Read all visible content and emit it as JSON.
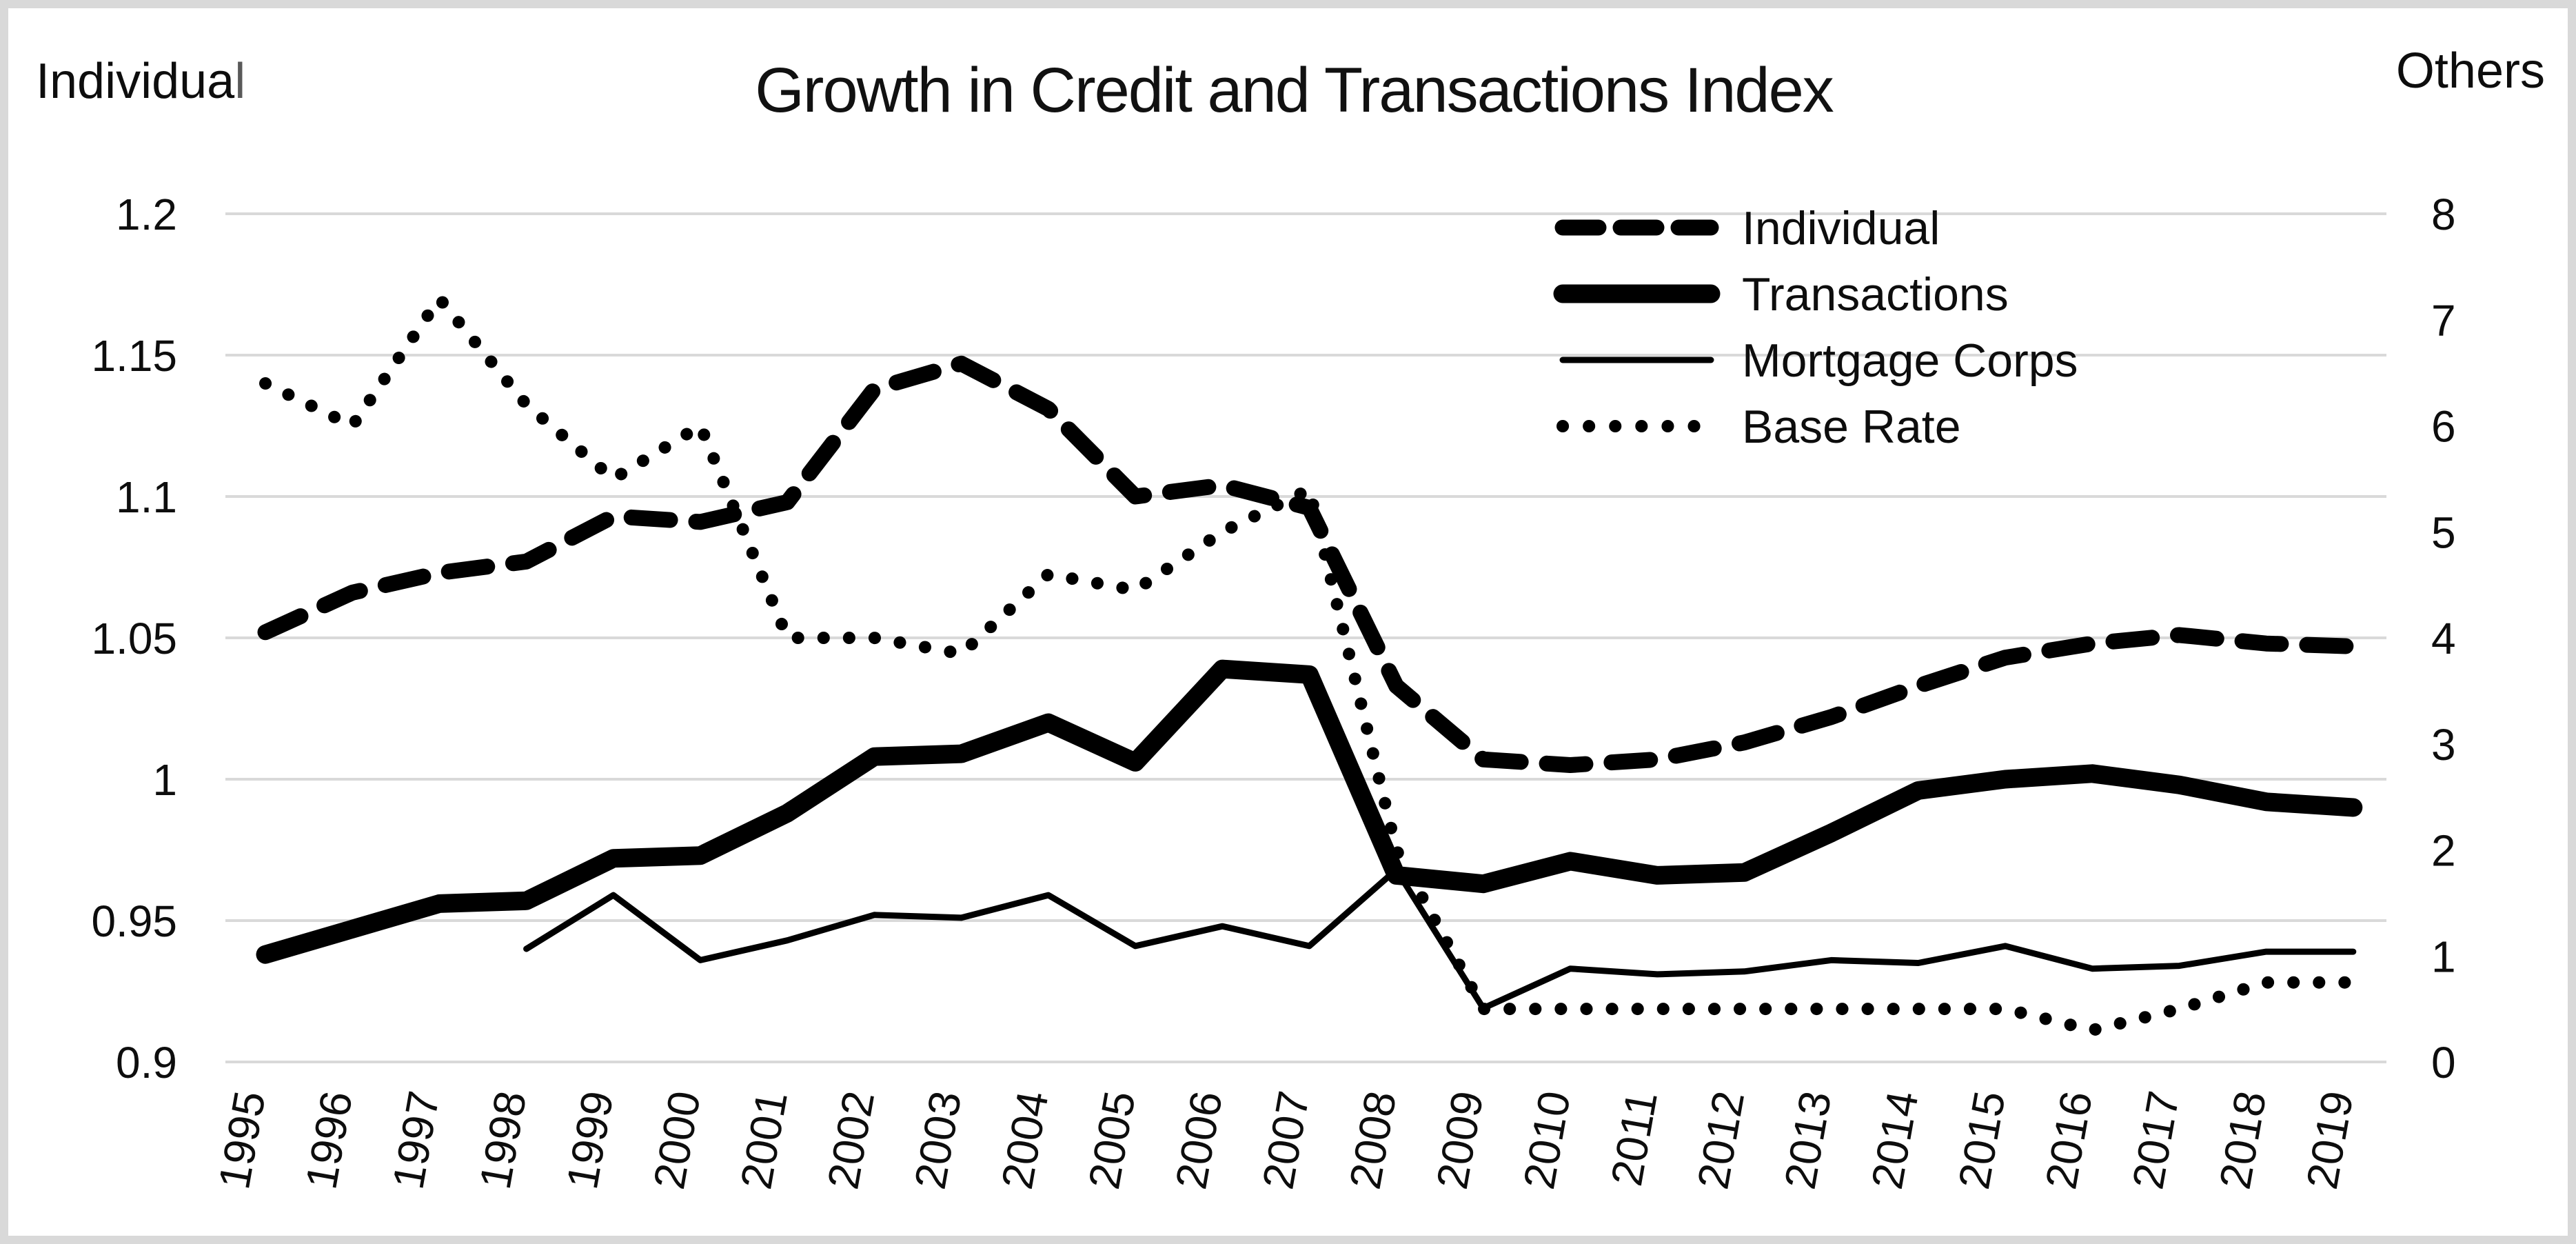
{
  "figure": {
    "left_axis_title_main": "Individua",
    "left_axis_title_tail": "l",
    "right_axis_title": "Others",
    "border_color": "#d9d9d9",
    "line_color": "#000000",
    "grid_color": "#d9d9d9"
  },
  "chart_data": {
    "type": "line",
    "title": "Growth in Credit and Transactions Index",
    "xlabel": "",
    "ylabel_left": "Individual",
    "ylabel_right": "Others",
    "grid": true,
    "legend_position": "upper-right",
    "categories": [
      "1995",
      "1996",
      "1997",
      "1998",
      "1999",
      "2000",
      "2001",
      "2002",
      "2003",
      "2004",
      "2005",
      "2006",
      "2007",
      "2008",
      "2009",
      "2010",
      "2011",
      "2012",
      "2013",
      "2014",
      "2015",
      "2016",
      "2017",
      "2018",
      "2019"
    ],
    "left_axis": {
      "min": 0.9,
      "max": 1.2,
      "ticks": [
        "1.2",
        "1.15",
        "1.1",
        "1.05",
        "1",
        "0.95",
        "0.9"
      ],
      "tick_values": [
        1.2,
        1.15,
        1.1,
        1.05,
        1.0,
        0.95,
        0.9
      ]
    },
    "right_axis": {
      "min": 0,
      "max": 8,
      "ticks": [
        "8",
        "7",
        "6",
        "5",
        "4",
        "3",
        "2",
        "1",
        "0"
      ],
      "tick_values": [
        8,
        7,
        6,
        5,
        4,
        3,
        2,
        1,
        0
      ]
    },
    "series": [
      {
        "name": "Individual",
        "axis": "left",
        "style": "dashed",
        "values": [
          1.052,
          1.066,
          1.073,
          1.077,
          1.093,
          1.091,
          1.098,
          1.138,
          1.147,
          1.131,
          1.1,
          1.104,
          1.096,
          1.033,
          1.007,
          1.005,
          1.007,
          1.013,
          1.022,
          1.033,
          1.043,
          1.048,
          1.051,
          1.048,
          1.047
        ]
      },
      {
        "name": "Transactions",
        "axis": "left",
        "style": "thick",
        "values": [
          0.938,
          0.947,
          0.956,
          0.957,
          0.972,
          0.973,
          0.988,
          1.008,
          1.009,
          1.02,
          1.006,
          1.039,
          1.037,
          0.966,
          0.963,
          0.971,
          0.966,
          0.967,
          0.981,
          0.996,
          1.0,
          1.002,
          0.998,
          0.992,
          0.99
        ]
      },
      {
        "name": "Mortgage Corps",
        "axis": "left",
        "style": "thin",
        "values": [
          null,
          null,
          null,
          0.94,
          0.959,
          0.936,
          0.943,
          0.952,
          0.951,
          0.959,
          0.941,
          0.948,
          0.941,
          0.968,
          0.919,
          0.933,
          0.931,
          0.932,
          0.936,
          0.935,
          0.941,
          0.933,
          0.934,
          0.939,
          0.939
        ]
      },
      {
        "name": "Base Rate",
        "axis": "right",
        "style": "dotted",
        "values": [
          6.4,
          6.0,
          7.2,
          6.2,
          5.5,
          6.0,
          4.0,
          4.0,
          3.85,
          4.6,
          4.45,
          5.0,
          5.4,
          2.0,
          0.5,
          0.5,
          0.5,
          0.5,
          0.5,
          0.5,
          0.5,
          0.3,
          0.5,
          0.75,
          0.75
        ]
      }
    ]
  }
}
